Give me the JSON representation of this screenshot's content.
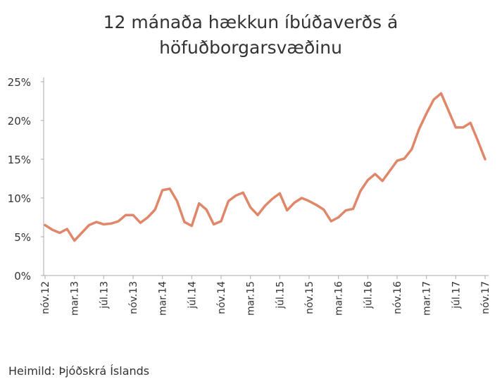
{
  "chart_data": {
    "type": "line",
    "title": [
      "12 mánaða hækkun íbúðaverðs á",
      "höfuðborgarsvæðinu"
    ],
    "source": "Heimild: Þjóðskrá Íslands",
    "categories": [
      "nóv.12",
      null,
      null,
      null,
      "mar.13",
      null,
      null,
      null,
      "júl.13",
      null,
      null,
      null,
      "nóv.13",
      null,
      null,
      null,
      "mar.14",
      null,
      null,
      null,
      "júl.14",
      null,
      null,
      null,
      "nóv.14",
      null,
      null,
      null,
      "mar.15",
      null,
      null,
      null,
      "júl.15",
      null,
      null,
      null,
      "nóv.15",
      null,
      null,
      null,
      "mar.16",
      null,
      null,
      null,
      "júl.16",
      null,
      null,
      null,
      "nóv.16",
      null,
      null,
      null,
      "mar.17",
      null,
      null,
      null,
      "júl.17",
      null,
      null,
      null,
      "nóv.17"
    ],
    "values": [
      6.5,
      5.9,
      5.5,
      6.0,
      4.5,
      5.5,
      6.5,
      6.9,
      6.6,
      6.7,
      7.0,
      7.8,
      7.8,
      6.8,
      7.5,
      8.5,
      11.0,
      11.2,
      9.6,
      6.9,
      6.4,
      9.3,
      8.5,
      6.6,
      7.0,
      9.6,
      10.3,
      10.7,
      8.8,
      7.8,
      9.0,
      9.9,
      10.6,
      8.4,
      9.4,
      10.0,
      9.6,
      9.1,
      8.5,
      7.0,
      7.5,
      8.4,
      8.6,
      10.9,
      12.3,
      13.1,
      12.2,
      13.5,
      14.8,
      15.1,
      16.3,
      18.9,
      20.9,
      22.7,
      23.5,
      21.3,
      19.1,
      19.1,
      19.7,
      17.4,
      15.0
    ],
    "color": "#e0876a",
    "ylim": [
      0,
      25
    ],
    "yticks": [
      {
        "value": 0,
        "label": "0%"
      },
      {
        "value": 5,
        "label": "5%"
      },
      {
        "value": 10,
        "label": "10%"
      },
      {
        "value": 15,
        "label": "15%"
      },
      {
        "value": 20,
        "label": "20%"
      },
      {
        "value": 25,
        "label": "25%"
      }
    ]
  }
}
